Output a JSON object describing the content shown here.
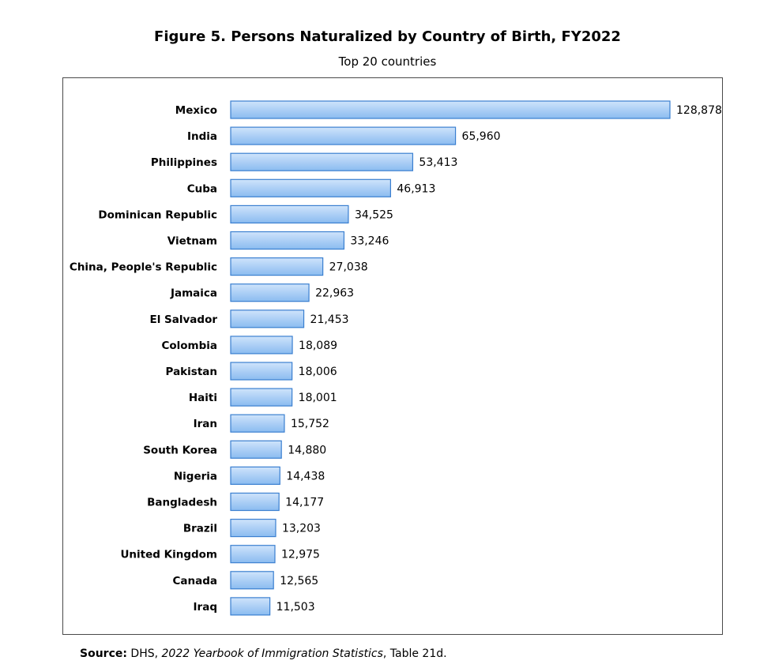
{
  "chart_data": {
    "type": "bar",
    "orientation": "horizontal",
    "title": "Figure 5. Persons Naturalized by Country of Birth, FY2022",
    "subtitle": "Top 20 countries",
    "categories": [
      "Mexico",
      "India",
      "Philippines",
      "Cuba",
      "Dominican Republic",
      "Vietnam",
      "China, People's Republic",
      "Jamaica",
      "El Salvador",
      "Colombia",
      "Pakistan",
      "Haiti",
      "Iran",
      "South Korea",
      "Nigeria",
      "Bangladesh",
      "Brazil",
      "United Kingdom",
      "Canada",
      "Iraq"
    ],
    "values": [
      128878,
      65960,
      53413,
      46913,
      34525,
      33246,
      27038,
      22963,
      21453,
      18089,
      18006,
      18001,
      15752,
      14880,
      14438,
      14177,
      13203,
      12975,
      12565,
      11503
    ],
    "value_labels": [
      "128,878",
      "65,960",
      "53,413",
      "46,913",
      "34,525",
      "33,246",
      "27,038",
      "22,963",
      "21,453",
      "18,089",
      "18,006",
      "18,001",
      "15,752",
      "14,880",
      "14,438",
      "14,177",
      "13,203",
      "12,975",
      "12,565",
      "11,503"
    ],
    "xlim": [
      0,
      128878
    ],
    "grid": false,
    "legend": "none",
    "bar_color": "#9ec7f5",
    "bar_edge_color": "#3a7fd0"
  },
  "source": {
    "label": "Source:",
    "prefix": " DHS, ",
    "title": "2022 Yearbook of Immigration Statistics",
    "suffix": ", Table 21d."
  }
}
